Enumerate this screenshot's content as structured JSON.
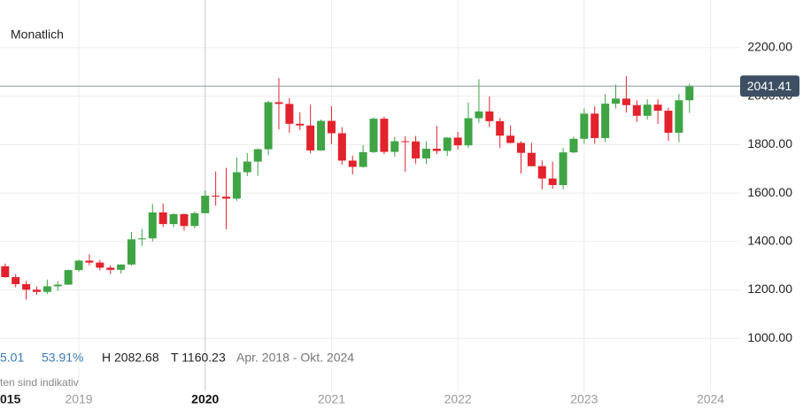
{
  "chart_data": {
    "type": "candlestick",
    "subtitle": "Monatlich",
    "x": [
      2018.4167,
      2018.5,
      2018.5833,
      2018.6667,
      2018.75,
      2018.8333,
      2018.9167,
      2019,
      2019.0833,
      2019.1667,
      2019.25,
      2019.3333,
      2019.4167,
      2019.5,
      2019.5833,
      2019.6667,
      2019.75,
      2019.8333,
      2019.9167,
      2020,
      2020.0833,
      2020.1667,
      2020.25,
      2020.3333,
      2020.4167,
      2020.5,
      2020.5833,
      2020.6667,
      2020.75,
      2020.8333,
      2020.9167,
      2021,
      2021.0833,
      2021.1667,
      2021.25,
      2021.3333,
      2021.4167,
      2021.5,
      2021.5833,
      2021.6667,
      2021.75,
      2021.8333,
      2021.9167,
      2022,
      2022.0833,
      2022.1667,
      2022.25,
      2022.3333,
      2022.4167,
      2022.5,
      2022.5833,
      2022.6667,
      2022.75,
      2022.8333,
      2022.9167,
      2023,
      2023.0833,
      2023.1667,
      2023.25,
      2023.3333,
      2023.4167,
      2023.5,
      2023.5833,
      2023.6667,
      2023.75,
      2023.8333
    ],
    "open": [
      1298,
      1253,
      1224,
      1201,
      1192,
      1215,
      1222,
      1282,
      1321,
      1313,
      1292,
      1283,
      1305,
      1409,
      1413,
      1520,
      1472,
      1513,
      1464,
      1517,
      1589,
      1585,
      1577,
      1686,
      1730,
      1781,
      1975,
      1968,
      1886,
      1879,
      1776,
      1898,
      1847,
      1734,
      1708,
      1769,
      1907,
      1770,
      1814,
      1813,
      1743,
      1783,
      1774,
      1829,
      1797,
      1909,
      1937,
      1897,
      1837,
      1807,
      1766,
      1711,
      1660,
      1633,
      1768,
      1824,
      1928,
      1827,
      1969,
      1990,
      1963,
      1919,
      1965,
      1940,
      1849,
      1983
    ],
    "high": [
      1309,
      1266,
      1237,
      1214,
      1243,
      1237,
      1284,
      1326,
      1347,
      1324,
      1301,
      1306,
      1439,
      1452,
      1555,
      1557,
      1517,
      1516,
      1524,
      1611,
      1689,
      1704,
      1747,
      1765,
      1785,
      1981,
      2075,
      1992,
      1933,
      1965,
      1903,
      1959,
      1872,
      1755,
      1798,
      1913,
      1916,
      1832,
      1834,
      1836,
      1814,
      1877,
      1831,
      1853,
      1974,
      2070,
      1998,
      1910,
      1879,
      1814,
      1808,
      1735,
      1730,
      1786,
      1833,
      1949,
      1959,
      2009,
      2048,
      2082.68,
      1983,
      1987,
      1987,
      1953,
      2009,
      2052
    ],
    "low": [
      1250,
      1211,
      1160.23,
      1180,
      1183,
      1196,
      1221,
      1275,
      1302,
      1281,
      1266,
      1267,
      1301,
      1382,
      1400,
      1459,
      1459,
      1445,
      1454,
      1517,
      1548,
      1451,
      1568,
      1670,
      1671,
      1757,
      1863,
      1849,
      1860,
      1764,
      1775,
      1802,
      1717,
      1677,
      1705,
      1765,
      1761,
      1750,
      1688,
      1722,
      1721,
      1761,
      1753,
      1780,
      1786,
      1890,
      1872,
      1787,
      1805,
      1681,
      1710,
      1615,
      1617,
      1616,
      1765,
      1804,
      1804,
      1810,
      1949,
      1932,
      1893,
      1903,
      1885,
      1815,
      1810,
      1931
    ],
    "close": [
      1253,
      1224,
      1201,
      1192,
      1215,
      1222,
      1282,
      1321,
      1313,
      1292,
      1283,
      1305,
      1409,
      1413,
      1520,
      1472,
      1513,
      1464,
      1517,
      1589,
      1585,
      1577,
      1686,
      1730,
      1781,
      1975,
      1968,
      1886,
      1879,
      1776,
      1898,
      1847,
      1734,
      1708,
      1769,
      1907,
      1770,
      1814,
      1813,
      1743,
      1783,
      1774,
      1829,
      1797,
      1909,
      1937,
      1897,
      1837,
      1807,
      1766,
      1711,
      1660,
      1633,
      1768,
      1824,
      1928,
      1827,
      1969,
      1990,
      1963,
      1919,
      1965,
      1940,
      1849,
      1983,
      2041.41
    ],
    "up_color": "#3fa444",
    "down_color": "#e2222c",
    "xlim": [
      2018.376,
      2024.732
    ],
    "xticks": [
      2019,
      2020,
      2021,
      2022,
      2023,
      2024
    ],
    "crosshair_x": 2020,
    "ylim": [
      789,
      2397
    ],
    "yticks": [
      {
        "value": 1000,
        "label": "1000.00"
      },
      {
        "value": 1200,
        "label": "1200.00"
      },
      {
        "value": 1400,
        "label": "1400.00"
      },
      {
        "value": 1600,
        "label": "1600.00"
      },
      {
        "value": 1800,
        "label": "1800.00"
      },
      {
        "value": 2000,
        "label": "2000.00"
      },
      {
        "value": 2200,
        "label": "2200.00"
      }
    ],
    "grid": true,
    "last_price": 2041.41,
    "stats": {
      "change": "5.01",
      "change_pct": "53.91%",
      "high": "H 2082.68",
      "low": "T 1160.23",
      "range": "Apr. 2018 - Okt. 2024"
    },
    "footnote": "ten sind indikativ",
    "period_label": "015"
  }
}
